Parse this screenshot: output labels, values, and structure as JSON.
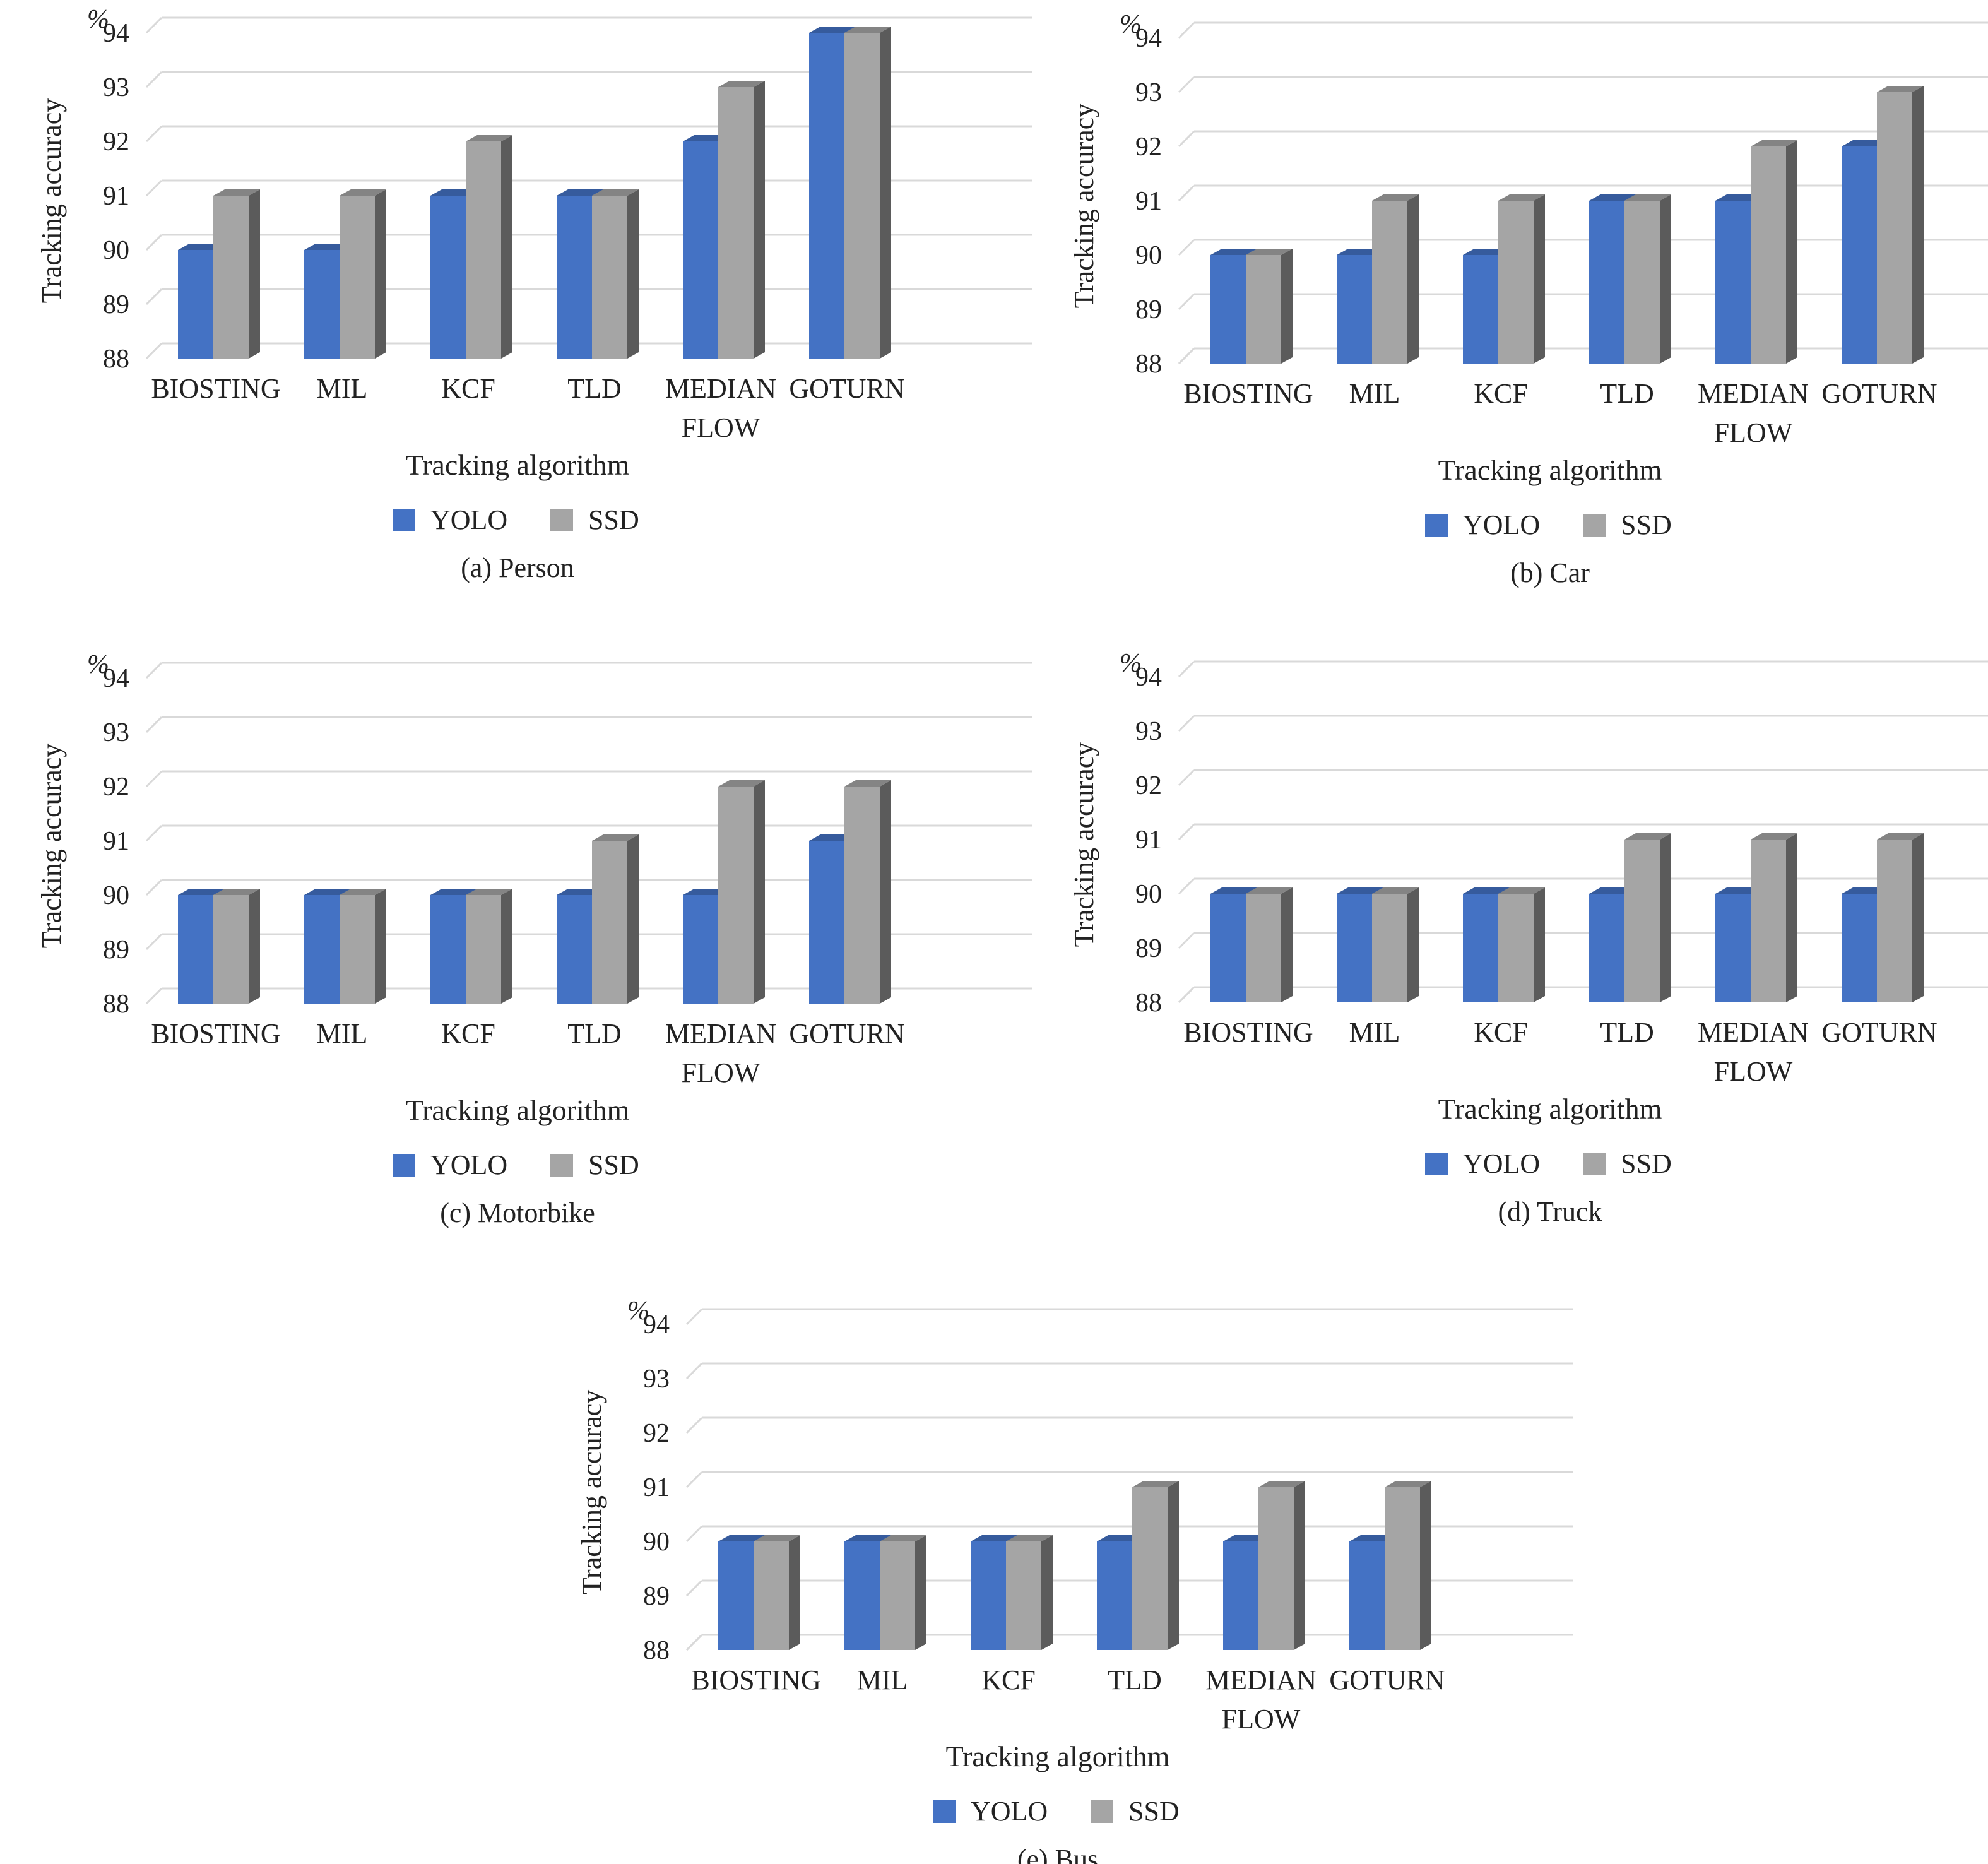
{
  "legend": {
    "series": [
      {
        "name": "YOLO",
        "color": "#4472c4"
      },
      {
        "name": "SSD",
        "color": "#a5a5a5"
      }
    ]
  },
  "chart_data": [
    {
      "type": "bar",
      "caption": "(a) Person",
      "unit": "%",
      "xlabel": "Tracking algorithm",
      "ylabel": "Tracking accuracy",
      "categories": [
        [
          "BIOSTING"
        ],
        [
          "MIL"
        ],
        [
          "KCF"
        ],
        [
          "TLD"
        ],
        [
          "MEDIAN",
          "FLOW"
        ],
        [
          "GOTURN"
        ]
      ],
      "series": [
        {
          "name": "YOLO",
          "values": [
            90,
            90,
            91,
            91,
            92,
            94
          ]
        },
        {
          "name": "SSD",
          "values": [
            91,
            91,
            92,
            91,
            93,
            94
          ]
        }
      ],
      "ylim": [
        88,
        94
      ],
      "yticks": [
        "88",
        "89",
        "90",
        "91",
        "92",
        "93",
        "94"
      ],
      "grid": true,
      "legend_position": "bottom"
    },
    {
      "type": "bar",
      "caption": "(b) Car",
      "unit": "%",
      "xlabel": "Tracking algorithm",
      "ylabel": "Tracking accuracy",
      "categories": [
        [
          "BIOSTING"
        ],
        [
          "MIL"
        ],
        [
          "KCF"
        ],
        [
          "TLD"
        ],
        [
          "MEDIAN",
          "FLOW"
        ],
        [
          "GOTURN"
        ]
      ],
      "series": [
        {
          "name": "YOLO",
          "values": [
            90,
            90,
            90,
            91,
            91,
            92
          ]
        },
        {
          "name": "SSD",
          "values": [
            90,
            91,
            91,
            91,
            92,
            93
          ]
        }
      ],
      "ylim": [
        88,
        94
      ],
      "yticks": [
        "88",
        "89",
        "90",
        "91",
        "92",
        "93",
        "94"
      ],
      "grid": true,
      "legend_position": "bottom"
    },
    {
      "type": "bar",
      "caption": "(c) Motorbike",
      "unit": "%",
      "xlabel": "Tracking algorithm",
      "ylabel": "Tracking accuracy",
      "categories": [
        [
          "BIOSTING"
        ],
        [
          "MIL"
        ],
        [
          "KCF"
        ],
        [
          "TLD"
        ],
        [
          "MEDIAN",
          "FLOW"
        ],
        [
          "GOTURN"
        ]
      ],
      "series": [
        {
          "name": "YOLO",
          "values": [
            90,
            90,
            90,
            90,
            90,
            91
          ]
        },
        {
          "name": "SSD",
          "values": [
            90,
            90,
            90,
            91,
            92,
            92
          ]
        }
      ],
      "ylim": [
        88,
        94
      ],
      "yticks": [
        "88",
        "89",
        "90",
        "91",
        "92",
        "93",
        "94"
      ],
      "grid": true,
      "legend_position": "bottom"
    },
    {
      "type": "bar",
      "caption": "(d) Truck",
      "unit": "%",
      "xlabel": "Tracking algorithm",
      "ylabel": "Tracking accuracy",
      "categories": [
        [
          "BIOSTING"
        ],
        [
          "MIL"
        ],
        [
          "KCF"
        ],
        [
          "TLD"
        ],
        [
          "MEDIAN",
          "FLOW"
        ],
        [
          "GOTURN"
        ]
      ],
      "series": [
        {
          "name": "YOLO",
          "values": [
            90,
            90,
            90,
            90,
            90,
            90
          ]
        },
        {
          "name": "SSD",
          "values": [
            90,
            90,
            90,
            91,
            91,
            91
          ]
        }
      ],
      "ylim": [
        88,
        94
      ],
      "yticks": [
        "88",
        "89",
        "90",
        "91",
        "92",
        "93",
        "94"
      ],
      "grid": true,
      "legend_position": "bottom"
    },
    {
      "type": "bar",
      "caption": "(e) Bus",
      "unit": "%",
      "xlabel": "Tracking algorithm",
      "ylabel": "Tracking accuracy",
      "categories": [
        [
          "BIOSTING"
        ],
        [
          "MIL"
        ],
        [
          "KCF"
        ],
        [
          "TLD"
        ],
        [
          "MEDIAN",
          "FLOW"
        ],
        [
          "GOTURN"
        ]
      ],
      "series": [
        {
          "name": "YOLO",
          "values": [
            90,
            90,
            90,
            90,
            90,
            90
          ]
        },
        {
          "name": "SSD",
          "values": [
            90,
            90,
            90,
            91,
            91,
            91
          ]
        }
      ],
      "ylim": [
        88,
        94
      ],
      "yticks": [
        "88",
        "89",
        "90",
        "91",
        "92",
        "93",
        "94"
      ],
      "grid": true,
      "legend_position": "bottom"
    }
  ]
}
